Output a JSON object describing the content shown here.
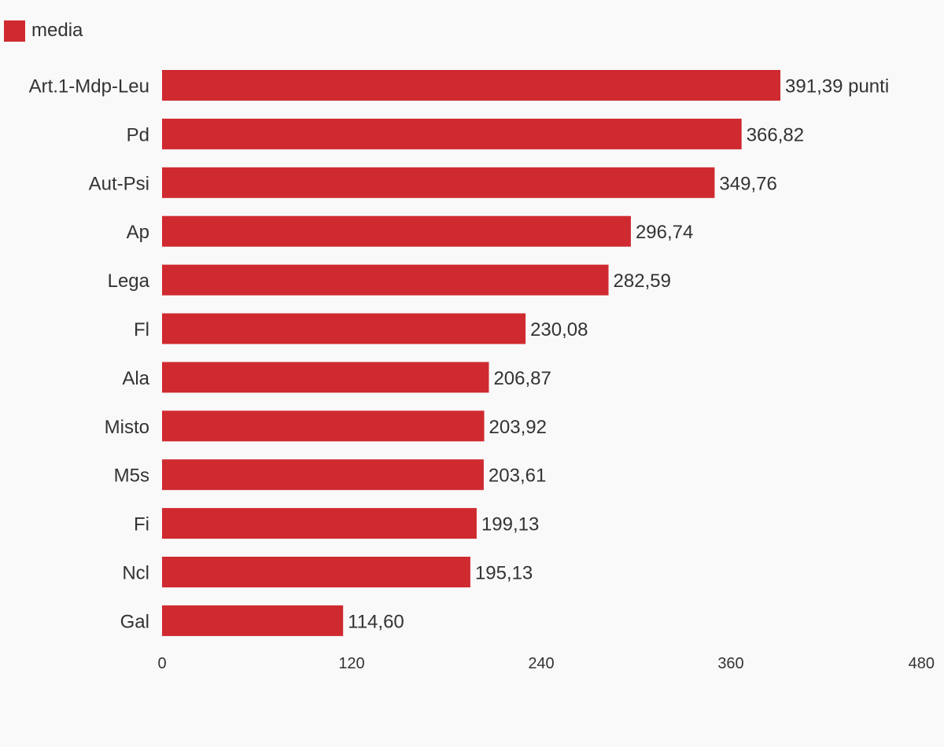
{
  "chart_data": {
    "type": "bar",
    "orientation": "horizontal",
    "legend_placement": "top-left",
    "grid": false,
    "series": [
      {
        "name": "media",
        "color": "#cf2a30",
        "values": [
          391.39,
          366.82,
          349.76,
          296.74,
          282.59,
          230.08,
          206.87,
          203.92,
          203.61,
          199.13,
          195.13,
          114.6
        ],
        "labels": [
          "391,39 punti",
          "366,82",
          "349,76",
          "296,74",
          "282,59",
          "230,08",
          "206,87",
          "203,92",
          "203,61",
          "199,13",
          "195,13",
          "114,60"
        ]
      }
    ],
    "categories": [
      "Art.1-Mdp-Leu",
      "Pd",
      "Aut-Psi",
      "Ap",
      "Lega",
      "Fl",
      "Ala",
      "Misto",
      "M5s",
      "Fi",
      "Ncl",
      "Gal"
    ],
    "xlim": [
      0,
      480
    ],
    "xticks": [
      0,
      120,
      240,
      360,
      480
    ],
    "xtick_labels": [
      "0",
      "120",
      "240",
      "360",
      "480"
    ]
  }
}
